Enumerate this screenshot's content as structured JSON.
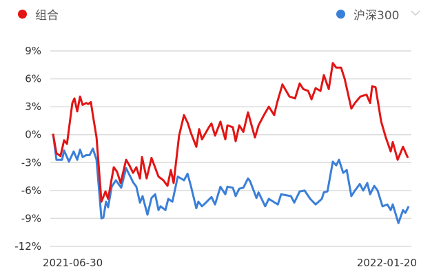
{
  "colors": {
    "portfolio": "#e31414",
    "benchmark": "#3a7fd8",
    "grid": "#dcdcdc"
  },
  "icons": {
    "dropdown": "chevron-down-icon"
  },
  "chart_data": {
    "type": "line",
    "title": "",
    "xlabel": "",
    "ylabel": "",
    "x_unit": "trading-day index from start",
    "xlim": [
      0,
      138
    ],
    "ylim": [
      -12,
      9
    ],
    "yticks": [
      9,
      6,
      3,
      0,
      -3,
      -6,
      -9,
      -12
    ],
    "ytick_labels": [
      "9%",
      "6%",
      "3%",
      "0%",
      "-3%",
      "-6%",
      "-9%",
      "-12%"
    ],
    "xtick_labels": {
      "start": "2021-06-30",
      "end": "2022-01-20"
    },
    "grid": true,
    "legend": [
      {
        "name": "组合",
        "position": "top-left"
      },
      {
        "name": "沪深300",
        "position": "top-right"
      }
    ],
    "series": [
      {
        "name": "组合",
        "color": "#e31414",
        "points": [
          [
            0,
            0.1
          ],
          [
            1.3,
            -2.0
          ],
          [
            2.9,
            -2.3
          ],
          [
            4.3,
            -0.6
          ],
          [
            5.4,
            -1.0
          ],
          [
            7.5,
            3.4
          ],
          [
            8.3,
            3.9
          ],
          [
            9.4,
            2.5
          ],
          [
            10.5,
            4.1
          ],
          [
            11.5,
            3.2
          ],
          [
            12.9,
            3.4
          ],
          [
            13.7,
            3.3
          ],
          [
            14.7,
            3.5
          ],
          [
            15.5,
            2.1
          ],
          [
            16.9,
            -0.3
          ],
          [
            18.8,
            -7.2
          ],
          [
            20.4,
            -6.1
          ],
          [
            21.4,
            -6.9
          ],
          [
            23.6,
            -3.5
          ],
          [
            24.9,
            -4.0
          ],
          [
            26.3,
            -5.2
          ],
          [
            28.4,
            -2.7
          ],
          [
            29.7,
            -3.3
          ],
          [
            31.1,
            -4.1
          ],
          [
            32.4,
            -3.5
          ],
          [
            33.8,
            -4.7
          ],
          [
            34.6,
            -2.4
          ],
          [
            36.4,
            -4.7
          ],
          [
            38.3,
            -2.5
          ],
          [
            41.0,
            -4.5
          ],
          [
            42.9,
            -4.9
          ],
          [
            44.5,
            -5.5
          ],
          [
            45.8,
            -3.8
          ],
          [
            46.9,
            -5.2
          ],
          [
            49.0,
            -0.1
          ],
          [
            50.9,
            2.1
          ],
          [
            52.3,
            1.3
          ],
          [
            53.6,
            0.2
          ],
          [
            55.7,
            -1.3
          ],
          [
            56.8,
            0.6
          ],
          [
            57.9,
            -0.5
          ],
          [
            60.6,
            0.8
          ],
          [
            61.6,
            1.2
          ],
          [
            63.0,
            -0.1
          ],
          [
            65.1,
            1.4
          ],
          [
            67.0,
            -0.5
          ],
          [
            67.8,
            1.0
          ],
          [
            69.9,
            0.8
          ],
          [
            71.0,
            -0.7
          ],
          [
            72.4,
            1.0
          ],
          [
            74.0,
            0.3
          ],
          [
            75.8,
            2.4
          ],
          [
            78.5,
            -0.3
          ],
          [
            79.9,
            1.0
          ],
          [
            82.0,
            2.1
          ],
          [
            83.9,
            3.0
          ],
          [
            86.0,
            2.1
          ],
          [
            87.1,
            3.4
          ],
          [
            89.2,
            5.4
          ],
          [
            91.9,
            4.1
          ],
          [
            94.1,
            3.9
          ],
          [
            95.9,
            5.5
          ],
          [
            97.3,
            4.9
          ],
          [
            99.2,
            4.7
          ],
          [
            100.5,
            3.8
          ],
          [
            102.1,
            5.0
          ],
          [
            104.0,
            4.7
          ],
          [
            105.3,
            6.4
          ],
          [
            107.2,
            4.9
          ],
          [
            108.8,
            7.7
          ],
          [
            110.1,
            7.2
          ],
          [
            112.0,
            7.2
          ],
          [
            113.4,
            6.0
          ],
          [
            116.0,
            2.8
          ],
          [
            117.4,
            3.4
          ],
          [
            119.5,
            4.1
          ],
          [
            121.9,
            4.3
          ],
          [
            123.3,
            3.4
          ],
          [
            124.1,
            5.2
          ],
          [
            125.4,
            5.1
          ],
          [
            127.6,
            1.4
          ],
          [
            129.4,
            -0.3
          ],
          [
            131.3,
            -1.8
          ],
          [
            132.1,
            -0.8
          ],
          [
            134.0,
            -2.7
          ],
          [
            136.1,
            -1.3
          ],
          [
            138,
            -2.5
          ]
        ]
      },
      {
        "name": "沪深300",
        "color": "#3a7fd8",
        "points": [
          [
            0,
            0.1
          ],
          [
            1.3,
            -2.7
          ],
          [
            3.5,
            -2.7
          ],
          [
            4.3,
            -1.7
          ],
          [
            6.2,
            -2.9
          ],
          [
            8.0,
            -1.8
          ],
          [
            9.4,
            -2.7
          ],
          [
            10.5,
            -1.6
          ],
          [
            11.5,
            -2.4
          ],
          [
            12.9,
            -2.2
          ],
          [
            14.2,
            -2.2
          ],
          [
            15.5,
            -1.5
          ],
          [
            16.9,
            -2.7
          ],
          [
            18.8,
            -9.0
          ],
          [
            19.6,
            -8.9
          ],
          [
            20.6,
            -7.2
          ],
          [
            21.4,
            -7.8
          ],
          [
            22.8,
            -5.6
          ],
          [
            24.4,
            -4.9
          ],
          [
            26.5,
            -5.7
          ],
          [
            28.4,
            -3.6
          ],
          [
            31.1,
            -5.1
          ],
          [
            32.4,
            -5.6
          ],
          [
            33.8,
            -7.3
          ],
          [
            34.8,
            -6.6
          ],
          [
            36.7,
            -8.6
          ],
          [
            38.3,
            -6.8
          ],
          [
            39.7,
            -6.4
          ],
          [
            41.0,
            -8.1
          ],
          [
            41.8,
            -7.7
          ],
          [
            43.7,
            -8.1
          ],
          [
            44.8,
            -6.9
          ],
          [
            46.4,
            -7.2
          ],
          [
            48.5,
            -4.5
          ],
          [
            50.9,
            -4.9
          ],
          [
            52.3,
            -4.2
          ],
          [
            53.6,
            -5.5
          ],
          [
            55.7,
            -7.9
          ],
          [
            56.5,
            -7.2
          ],
          [
            57.9,
            -7.7
          ],
          [
            59.8,
            -7.2
          ],
          [
            61.6,
            -6.7
          ],
          [
            63.0,
            -7.5
          ],
          [
            65.1,
            -5.6
          ],
          [
            67.0,
            -6.4
          ],
          [
            67.8,
            -5.6
          ],
          [
            69.9,
            -5.7
          ],
          [
            71.0,
            -6.6
          ],
          [
            72.4,
            -5.8
          ],
          [
            74.0,
            -5.7
          ],
          [
            75.8,
            -4.7
          ],
          [
            76.6,
            -5.0
          ],
          [
            79.1,
            -6.8
          ],
          [
            79.9,
            -6.2
          ],
          [
            82.5,
            -7.7
          ],
          [
            83.9,
            -6.9
          ],
          [
            87.4,
            -7.5
          ],
          [
            88.7,
            -6.4
          ],
          [
            92.5,
            -6.6
          ],
          [
            93.8,
            -7.3
          ],
          [
            95.9,
            -6.1
          ],
          [
            97.8,
            -6.0
          ],
          [
            100.0,
            -6.9
          ],
          [
            102.1,
            -7.5
          ],
          [
            104.5,
            -6.9
          ],
          [
            105.3,
            -6.2
          ],
          [
            106.7,
            -6.1
          ],
          [
            108.8,
            -2.9
          ],
          [
            110.1,
            -3.3
          ],
          [
            111.2,
            -2.7
          ],
          [
            112.8,
            -4.1
          ],
          [
            114.2,
            -3.8
          ],
          [
            116.0,
            -6.6
          ],
          [
            117.4,
            -6.0
          ],
          [
            119.3,
            -5.3
          ],
          [
            120.6,
            -6.0
          ],
          [
            122.2,
            -5.2
          ],
          [
            123.3,
            -6.4
          ],
          [
            124.9,
            -5.5
          ],
          [
            126.2,
            -6.0
          ],
          [
            128.1,
            -7.7
          ],
          [
            130.0,
            -7.5
          ],
          [
            131.3,
            -8.1
          ],
          [
            132.1,
            -7.5
          ],
          [
            134.3,
            -9.5
          ],
          [
            136.1,
            -8.1
          ],
          [
            137.0,
            -8.4
          ],
          [
            138.3,
            -7.7
          ]
        ]
      }
    ]
  }
}
